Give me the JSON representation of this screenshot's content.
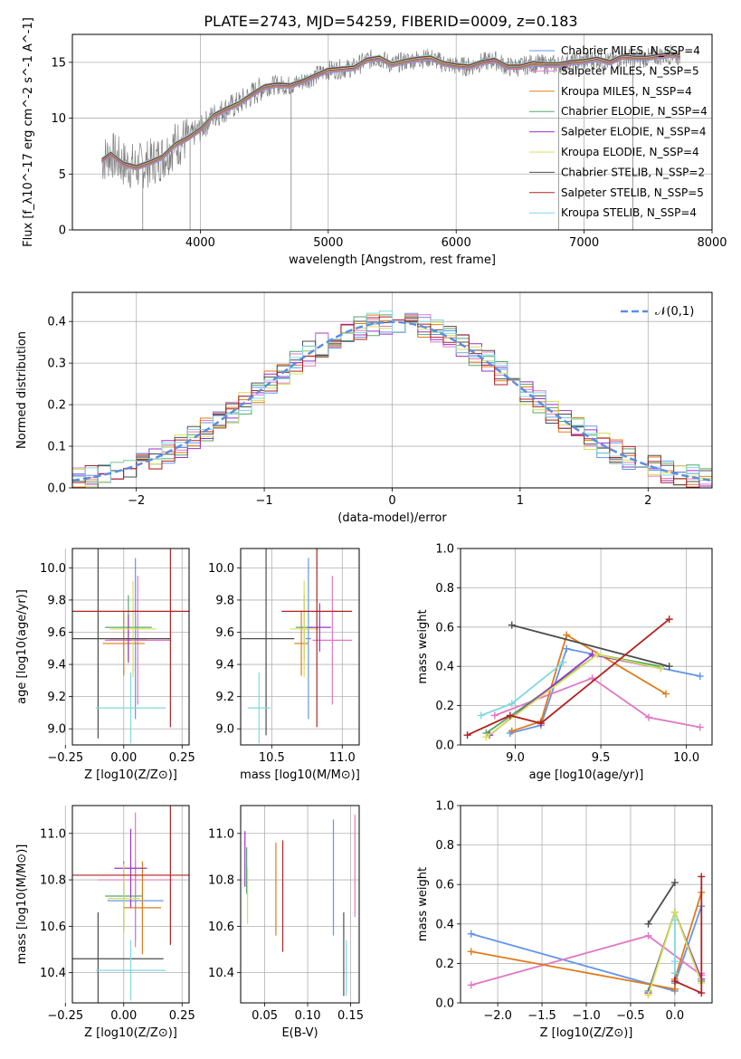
{
  "figure_title": "PLATE=2743, MJD=54259, FIBERID=0009, z=0.183",
  "colors": {
    "chabrier_miles": "#6495ed",
    "salpeter_miles": "#e377c2",
    "kroupa_miles": "#e07b1a",
    "chabrier_elodie": "#55a868",
    "salpeter_elodie": "#9932cc",
    "kroupa_elodie": "#d4e157",
    "chabrier_stelib": "#4d4d4d",
    "salpeter_stelib": "#b22222",
    "kroupa_stelib": "#80d8e0",
    "data": "#808080",
    "normal": "#5b8ee0"
  },
  "chart_data": [
    {
      "id": "spectrum",
      "type": "line",
      "xlabel": "wavelength [Angstrom, rest frame]",
      "ylabel": "Flux [f_λ10^-17 erg cm^-2 s^-1 A^-1]",
      "xlim": [
        3000,
        8000
      ],
      "ylim": [
        0,
        17.5
      ],
      "xticks": [
        4000,
        5000,
        6000,
        7000,
        8000
      ],
      "yticks": [
        0,
        5,
        10,
        15
      ],
      "legend": [
        "Chabrier MILES, N_SSP=4",
        "Salpeter MILES, N_SSP=5",
        "Kroupa MILES, N_SSP=4",
        "Chabrier ELODIE, N_SSP=4",
        "Salpeter ELODIE, N_SSP=4",
        "Kroupa ELODIE, N_SSP=4",
        "Chabrier STELIB, N_SSP=2",
        "Salpeter STELIB, N_SSP=5",
        "Kroupa STELIB, N_SSP=4"
      ],
      "legend_position": "upper right",
      "model_curve": {
        "x": [
          3230,
          3300,
          3400,
          3500,
          3600,
          3700,
          3800,
          3900,
          4000,
          4100,
          4200,
          4300,
          4400,
          4500,
          4600,
          4700,
          4800,
          4900,
          5000,
          5100,
          5200,
          5300,
          5400,
          5500,
          5600,
          5700,
          5800,
          5900,
          6000,
          6100,
          6200,
          6300,
          6400,
          6500,
          6600,
          6700,
          6800,
          6900,
          7000,
          7100,
          7200,
          7300,
          7400,
          7500,
          7600,
          7700,
          7750
        ],
        "y": [
          6.2,
          6.8,
          5.9,
          5.6,
          6.0,
          6.5,
          7.6,
          8.2,
          9.0,
          10.2,
          10.8,
          11.3,
          12.1,
          12.8,
          13.0,
          12.9,
          13.3,
          13.8,
          14.3,
          14.4,
          14.5,
          15.2,
          15.4,
          14.8,
          15.1,
          15.3,
          15.4,
          14.9,
          14.7,
          14.6,
          15.0,
          15.2,
          14.6,
          14.6,
          14.9,
          14.8,
          14.8,
          15.0,
          15.1,
          15.3,
          15.0,
          15.5,
          15.4,
          15.4,
          15.6,
          15.7,
          15.5
        ]
      }
    },
    {
      "id": "residuals",
      "type": "line",
      "xlabel": "(data-model)/error",
      "ylabel": "Normed distribution",
      "xlim": [
        -2.5,
        2.5
      ],
      "ylim": [
        0,
        0.47
      ],
      "xticks": [
        -2,
        -1,
        0,
        1,
        2
      ],
      "yticks": [
        0.0,
        0.1,
        0.2,
        0.3,
        0.4
      ],
      "legend": [
        "𝒩(0,1)"
      ],
      "legend_position": "upper right"
    },
    {
      "id": "age-vs-Z",
      "type": "scatter",
      "xlabel": "Z [log10(Z/Z⊙)]",
      "ylabel": "age  [log10(age/yr)]",
      "xlim": [
        -0.22,
        0.28
      ],
      "ylim": [
        8.9,
        10.12
      ],
      "xticks": [
        -0.25,
        0.0,
        0.25
      ],
      "yticks": [
        9.0,
        9.2,
        9.4,
        9.6,
        9.8,
        10.0
      ],
      "points": [
        {
          "model": "chabrier_miles",
          "x": 0.05,
          "xerr": 0.02,
          "y": 9.56,
          "yerr": 0.5
        },
        {
          "model": "salpeter_miles",
          "x": 0.06,
          "xerr": 0.14,
          "y": 9.55,
          "yerr": 0.4
        },
        {
          "model": "kroupa_miles",
          "x": 0.0,
          "xerr": 0.09,
          "y": 9.53,
          "yerr": 0.2
        },
        {
          "model": "chabrier_elodie",
          "x": 0.02,
          "xerr": 0.1,
          "y": 9.63,
          "yerr": 0.2
        },
        {
          "model": "salpeter_elodie",
          "x": 0.02,
          "xerr": 0.08,
          "y": 9.56,
          "yerr": 0.15
        },
        {
          "model": "kroupa_elodie",
          "x": 0.04,
          "xerr": 0.1,
          "y": 9.62,
          "yerr": 0.3
        },
        {
          "model": "chabrier_stelib",
          "x": -0.11,
          "xerr": 0.31,
          "y": 9.56,
          "yerr": 0.62
        },
        {
          "model": "salpeter_stelib",
          "x": 0.2,
          "xerr": 0.45,
          "y": 9.73,
          "yerr": 0.72
        },
        {
          "model": "kroupa_stelib",
          "x": 0.03,
          "xerr": 0.15,
          "y": 9.13,
          "yerr": 0.22
        }
      ]
    },
    {
      "id": "age-vs-mass",
      "type": "scatter",
      "xlabel": "mass [log10(M/M⊙)]",
      "ylabel": "",
      "xlim": [
        10.28,
        11.12
      ],
      "ylim": [
        8.9,
        10.12
      ],
      "xticks": [
        10.5,
        11.0
      ],
      "yticks": [
        9.0,
        9.2,
        9.4,
        9.6,
        9.8,
        10.0
      ],
      "points": [
        {
          "model": "chabrier_miles",
          "x": 10.76,
          "xerr": 0.02,
          "y": 9.56,
          "yerr": 0.5
        },
        {
          "model": "salpeter_miles",
          "x": 10.93,
          "xerr": 0.14,
          "y": 9.55,
          "yerr": 0.4
        },
        {
          "model": "kroupa_miles",
          "x": 10.71,
          "xerr": 0.05,
          "y": 9.53,
          "yerr": 0.2
        },
        {
          "model": "chabrier_elodie",
          "x": 10.73,
          "xerr": 0.06,
          "y": 9.63,
          "yerr": 0.2
        },
        {
          "model": "salpeter_elodie",
          "x": 10.84,
          "xerr": 0.08,
          "y": 9.63,
          "yerr": 0.15
        },
        {
          "model": "kroupa_elodie",
          "x": 10.73,
          "xerr": 0.1,
          "y": 9.62,
          "yerr": 0.3
        },
        {
          "model": "chabrier_stelib",
          "x": 10.46,
          "xerr": 0.2,
          "y": 9.56,
          "yerr": 0.6
        },
        {
          "model": "salpeter_stelib",
          "x": 10.82,
          "xerr": 0.25,
          "y": 9.73,
          "yerr": 0.72
        },
        {
          "model": "kroupa_stelib",
          "x": 10.41,
          "xerr": 0.08,
          "y": 9.13,
          "yerr": 0.22
        }
      ]
    },
    {
      "id": "weight-vs-age",
      "type": "line",
      "xlabel": "age  [log10(age/yr)]",
      "ylabel": "mass weight",
      "xlim": [
        8.68,
        10.15
      ],
      "ylim": [
        0,
        1.0
      ],
      "xticks": [
        9.0,
        9.5,
        10.0
      ],
      "yticks": [
        0.0,
        0.2,
        0.4,
        0.6,
        0.8,
        1.0
      ],
      "series": [
        {
          "model": "chabrier_miles",
          "x": [
            8.97,
            9.15,
            9.3,
            10.08
          ],
          "y": [
            0.06,
            0.1,
            0.49,
            0.35
          ]
        },
        {
          "model": "salpeter_miles",
          "x": [
            8.88,
            9.45,
            9.78,
            10.08
          ],
          "y": [
            0.15,
            0.34,
            0.14,
            0.09
          ]
        },
        {
          "model": "kroupa_miles",
          "x": [
            8.98,
            9.15,
            9.3,
            9.88
          ],
          "y": [
            0.07,
            0.12,
            0.56,
            0.26
          ]
        },
        {
          "model": "chabrier_elodie",
          "x": [
            8.83,
            9.48,
            9.85
          ],
          "y": [
            0.06,
            0.46,
            0.4
          ]
        },
        {
          "model": "salpeter_elodie",
          "x": [
            8.85,
            9.45,
            9.85
          ],
          "y": [
            0.05,
            0.46,
            0.39
          ]
        },
        {
          "model": "kroupa_elodie",
          "x": [
            8.83,
            9.48,
            9.85
          ],
          "y": [
            0.04,
            0.46,
            0.39
          ]
        },
        {
          "model": "chabrier_stelib",
          "x": [
            8.98,
            9.9
          ],
          "y": [
            0.61,
            0.4
          ]
        },
        {
          "model": "salpeter_stelib",
          "x": [
            8.72,
            8.97,
            9.15,
            9.9
          ],
          "y": [
            0.05,
            0.15,
            0.11,
            0.64
          ]
        },
        {
          "model": "kroupa_stelib",
          "x": [
            8.8,
            8.98,
            9.28
          ],
          "y": [
            0.15,
            0.21,
            0.42
          ]
        }
      ]
    },
    {
      "id": "mass-vs-Z",
      "type": "scatter",
      "xlabel": "Z [log10(Z/Z⊙)]",
      "ylabel": "mass [log10(M/M⊙)]",
      "xlim": [
        -0.22,
        0.28
      ],
      "ylim": [
        10.27,
        11.12
      ],
      "xticks": [
        -0.25,
        0.0,
        0.25
      ],
      "yticks": [
        10.4,
        10.6,
        10.8,
        11.0
      ],
      "points": [
        {
          "model": "chabrier_miles",
          "x": 0.05,
          "xerr": 0.12,
          "y": 10.71,
          "yerr": 0.17
        },
        {
          "model": "salpeter_miles",
          "x": 0.05,
          "xerr": 0.16,
          "y": 10.8,
          "yerr": 0.29
        },
        {
          "model": "kroupa_miles",
          "x": 0.08,
          "xerr": 0.08,
          "y": 10.68,
          "yerr": 0.2
        },
        {
          "model": "chabrier_elodie",
          "x": 0.0,
          "xerr": 0.08,
          "y": 10.73,
          "yerr": 0.15
        },
        {
          "model": "salpeter_elodie",
          "x": 0.03,
          "xerr": 0.07,
          "y": 10.85,
          "yerr": 0.17
        },
        {
          "model": "kroupa_elodie",
          "x": 0.0,
          "xerr": 0.07,
          "y": 10.72,
          "yerr": 0.15
        },
        {
          "model": "chabrier_stelib",
          "x": -0.11,
          "xerr": 0.28,
          "y": 10.46,
          "yerr": 0.2
        },
        {
          "model": "salpeter_stelib",
          "x": 0.2,
          "xerr": 0.48,
          "y": 10.82,
          "yerr": 0.3
        },
        {
          "model": "kroupa_stelib",
          "x": 0.03,
          "xerr": 0.15,
          "y": 10.41,
          "yerr": 0.13
        }
      ]
    },
    {
      "id": "mass-vs-ebv",
      "type": "scatter",
      "xlabel": "E(B-V)",
      "ylabel": "",
      "xlim": [
        0.022,
        0.16
      ],
      "ylim": [
        10.27,
        11.12
      ],
      "xticks": [
        0.05,
        0.1,
        0.15
      ],
      "yticks": [
        10.4,
        10.6,
        10.8,
        11.0
      ],
      "points": [
        {
          "model": "chabrier_miles",
          "x": 0.13,
          "y": 10.81,
          "yerr": 0.25
        },
        {
          "model": "salpeter_miles",
          "x": 0.155,
          "y": 10.86,
          "yerr": 0.22
        },
        {
          "model": "kroupa_miles",
          "x": 0.063,
          "y": 10.76,
          "yerr": 0.2
        },
        {
          "model": "chabrier_elodie",
          "x": 0.029,
          "y": 10.84,
          "yerr": 0.1
        },
        {
          "model": "salpeter_elodie",
          "x": 0.027,
          "y": 10.89,
          "yerr": 0.12
        },
        {
          "model": "kroupa_elodie",
          "x": 0.03,
          "y": 10.73,
          "yerr": 0.12
        },
        {
          "model": "chabrier_stelib",
          "x": 0.142,
          "y": 10.48,
          "yerr": 0.18
        },
        {
          "model": "salpeter_stelib",
          "x": 0.071,
          "y": 10.73,
          "yerr": 0.24
        },
        {
          "model": "kroupa_stelib",
          "x": 0.145,
          "y": 10.42,
          "yerr": 0.12
        }
      ]
    },
    {
      "id": "weight-vs-Z",
      "type": "line",
      "xlabel": "Z [log10(Z/Z⊙)]",
      "ylabel": "mass weight",
      "xlim": [
        -2.42,
        0.42
      ],
      "ylim": [
        0,
        1.0
      ],
      "xticks": [
        -2.0,
        -1.5,
        -1.0,
        -0.5,
        0.0
      ],
      "yticks": [
        0.0,
        0.2,
        0.4,
        0.6,
        0.8,
        1.0
      ],
      "series": [
        {
          "model": "chabrier_miles",
          "x": [
            -2.3,
            0.0,
            0.0,
            0.3
          ],
          "y": [
            0.35,
            0.06,
            0.1,
            0.49
          ]
        },
        {
          "model": "salpeter_miles",
          "x": [
            -2.3,
            -0.3,
            0.3,
            0.3
          ],
          "y": [
            0.09,
            0.34,
            0.14,
            0.15
          ]
        },
        {
          "model": "kroupa_miles",
          "x": [
            -2.3,
            0.0,
            0.0,
            0.3
          ],
          "y": [
            0.26,
            0.07,
            0.12,
            0.56
          ]
        },
        {
          "model": "chabrier_elodie",
          "x": [
            -0.3,
            0.0,
            0.3
          ],
          "y": [
            0.06,
            0.46,
            0.11
          ]
        },
        {
          "model": "salpeter_elodie",
          "x": [
            -0.3,
            0.0,
            0.3
          ],
          "y": [
            0.05,
            0.46,
            0.12
          ]
        },
        {
          "model": "kroupa_elodie",
          "x": [
            -0.3,
            0.0,
            0.3
          ],
          "y": [
            0.04,
            0.46,
            0.1
          ]
        },
        {
          "model": "chabrier_stelib",
          "x": [
            -0.3,
            0.0
          ],
          "y": [
            0.4,
            0.61
          ]
        },
        {
          "model": "salpeter_stelib",
          "x": [
            0.0,
            0.0,
            0.3,
            0.3
          ],
          "y": [
            0.15,
            0.11,
            0.05,
            0.64
          ]
        },
        {
          "model": "kroupa_stelib",
          "x": [
            0.0,
            0.0,
            0.0
          ],
          "y": [
            0.15,
            0.42,
            0.21
          ]
        }
      ]
    }
  ]
}
